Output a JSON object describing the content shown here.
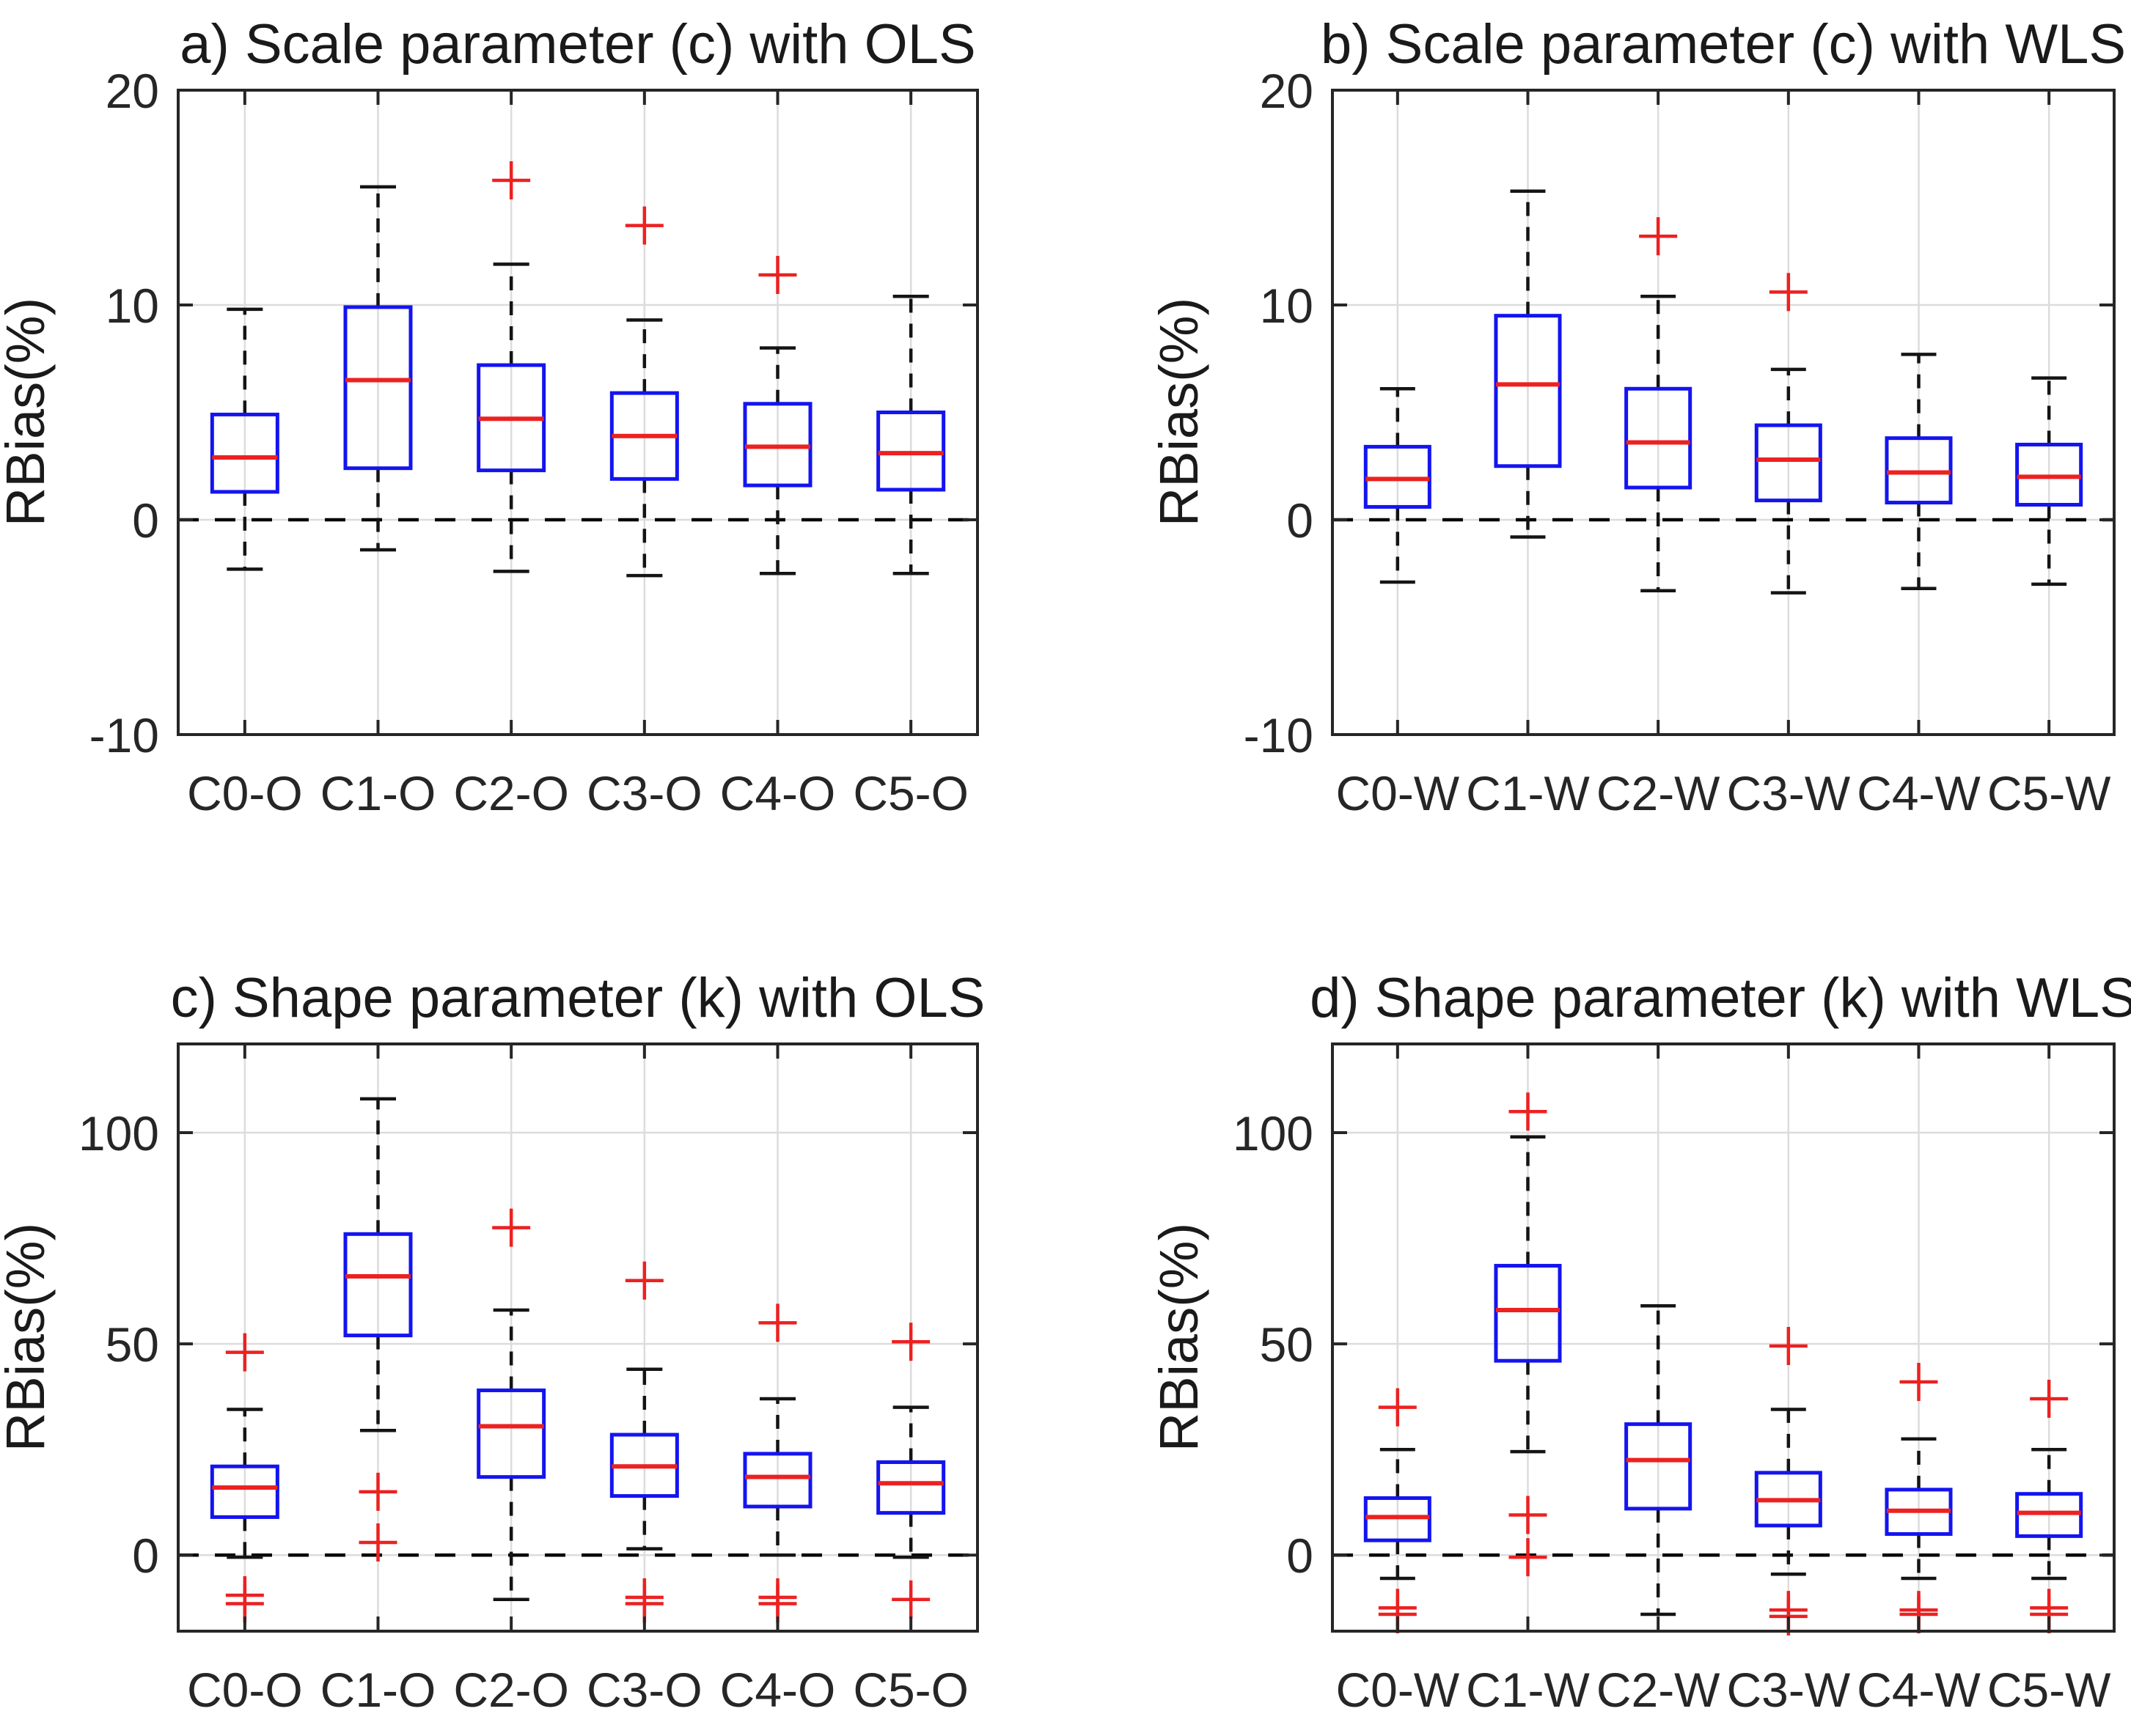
{
  "figure": {
    "background": "#ffffff",
    "colors": {
      "box": "#1414f0",
      "median": "#ec2121",
      "outlier": "#ec2121",
      "whisker": "#141414",
      "cap": "#141414",
      "grid": "#dcdcdc",
      "axis": "#262626",
      "zero_line": "#000000",
      "text": "#262626"
    }
  },
  "chart_data": [
    {
      "id": "a",
      "type": "boxplot",
      "title": "a) Scale parameter (c) with OLS",
      "ylabel": "RBias(%)",
      "ylim": [
        -10,
        20
      ],
      "yticks": [
        -10,
        0,
        10,
        20
      ],
      "grid": true,
      "zero_line": true,
      "categories": [
        "C0-O",
        "C1-O",
        "C2-O",
        "C3-O",
        "C4-O",
        "C5-O"
      ],
      "boxes": [
        {
          "whisker_low": -2.3,
          "q1": 1.3,
          "median": 2.9,
          "q3": 4.9,
          "whisker_high": 9.8,
          "outliers": []
        },
        {
          "whisker_low": -1.4,
          "q1": 2.4,
          "median": 6.5,
          "q3": 9.9,
          "whisker_high": 15.5,
          "outliers": []
        },
        {
          "whisker_low": -2.4,
          "q1": 2.3,
          "median": 4.7,
          "q3": 7.2,
          "whisker_high": 11.9,
          "outliers": [
            15.8
          ]
        },
        {
          "whisker_low": -2.6,
          "q1": 1.9,
          "median": 3.9,
          "q3": 5.9,
          "whisker_high": 9.3,
          "outliers": [
            13.7
          ]
        },
        {
          "whisker_low": -2.5,
          "q1": 1.6,
          "median": 3.4,
          "q3": 5.4,
          "whisker_high": 8.0,
          "outliers": [
            11.4
          ]
        },
        {
          "whisker_low": -2.5,
          "q1": 1.4,
          "median": 3.1,
          "q3": 5.0,
          "whisker_high": 10.4,
          "outliers": []
        }
      ]
    },
    {
      "id": "b",
      "type": "boxplot",
      "title": "b) Scale parameter (c) with WLS",
      "ylabel": "RBias(%)",
      "ylim": [
        -10,
        20
      ],
      "yticks": [
        -10,
        0,
        10,
        20
      ],
      "grid": true,
      "zero_line": true,
      "categories": [
        "C0-W",
        "C1-W",
        "C2-W",
        "C3-W",
        "C4-W",
        "C5-W"
      ],
      "boxes": [
        {
          "whisker_low": -2.9,
          "q1": 0.6,
          "median": 1.9,
          "q3": 3.4,
          "whisker_high": 6.1,
          "outliers": []
        },
        {
          "whisker_low": -0.8,
          "q1": 2.5,
          "median": 6.3,
          "q3": 9.5,
          "whisker_high": 15.3,
          "outliers": []
        },
        {
          "whisker_low": -3.3,
          "q1": 1.5,
          "median": 3.6,
          "q3": 6.1,
          "whisker_high": 10.4,
          "outliers": [
            13.2
          ]
        },
        {
          "whisker_low": -3.4,
          "q1": 0.9,
          "median": 2.8,
          "q3": 4.4,
          "whisker_high": 7.0,
          "outliers": [
            10.6
          ]
        },
        {
          "whisker_low": -3.2,
          "q1": 0.8,
          "median": 2.2,
          "q3": 3.8,
          "whisker_high": 7.7,
          "outliers": []
        },
        {
          "whisker_low": -3.0,
          "q1": 0.7,
          "median": 2.0,
          "q3": 3.5,
          "whisker_high": 6.6,
          "outliers": []
        }
      ]
    },
    {
      "id": "c",
      "type": "boxplot",
      "title": "c) Shape parameter (k) with OLS",
      "ylabel": "RBias(%)",
      "ylim": [
        -18,
        121
      ],
      "yticks": [
        0,
        50,
        100
      ],
      "grid": true,
      "zero_line": true,
      "categories": [
        "C0-O",
        "C1-O",
        "C2-O",
        "C3-O",
        "C4-O",
        "C5-O"
      ],
      "boxes": [
        {
          "whisker_low": -0.5,
          "q1": 9.0,
          "median": 16.0,
          "q3": 21.0,
          "whisker_high": 34.5,
          "outliers": [
            48,
            -9.5,
            -11.5
          ]
        },
        {
          "whisker_low": 29.5,
          "q1": 52.0,
          "median": 66.0,
          "q3": 76.0,
          "whisker_high": 108.0,
          "outliers": [
            15,
            3
          ]
        },
        {
          "whisker_low": -10.5,
          "q1": 18.5,
          "median": 30.5,
          "q3": 39.0,
          "whisker_high": 58.0,
          "outliers": [
            77.5
          ]
        },
        {
          "whisker_low": 1.5,
          "q1": 14.0,
          "median": 21.0,
          "q3": 28.5,
          "whisker_high": 44.0,
          "outliers": [
            65,
            -10,
            -11.5
          ]
        },
        {
          "whisker_low": 0.0,
          "q1": 11.5,
          "median": 18.5,
          "q3": 24.0,
          "whisker_high": 37.0,
          "outliers": [
            55,
            -10,
            -11.5
          ]
        },
        {
          "whisker_low": -0.5,
          "q1": 10.0,
          "median": 17.0,
          "q3": 22.0,
          "whisker_high": 35.0,
          "outliers": [
            50.5,
            -10.5
          ]
        }
      ]
    },
    {
      "id": "d",
      "type": "boxplot",
      "title": "d) Shape parameter (k) with WLS",
      "ylabel": "RBias(%)",
      "ylim": [
        -18,
        121
      ],
      "yticks": [
        0,
        50,
        100
      ],
      "grid": true,
      "zero_line": true,
      "categories": [
        "C0-W",
        "C1-W",
        "C2-W",
        "C3-W",
        "C4-W",
        "C5-W"
      ],
      "boxes": [
        {
          "whisker_low": -5.5,
          "q1": 3.5,
          "median": 9.0,
          "q3": 13.5,
          "whisker_high": 25.0,
          "outliers": [
            35,
            -12.5,
            -14
          ]
        },
        {
          "whisker_low": 24.5,
          "q1": 46.0,
          "median": 58.0,
          "q3": 68.5,
          "whisker_high": 99.0,
          "outliers": [
            105,
            9.5,
            -0.5
          ]
        },
        {
          "whisker_low": -14.0,
          "q1": 11.0,
          "median": 22.5,
          "q3": 31.0,
          "whisker_high": 59.0,
          "outliers": []
        },
        {
          "whisker_low": -4.5,
          "q1": 7.0,
          "median": 13.0,
          "q3": 19.5,
          "whisker_high": 34.5,
          "outliers": [
            49.5,
            -13,
            -14.5
          ]
        },
        {
          "whisker_low": -5.5,
          "q1": 5.0,
          "median": 10.5,
          "q3": 15.5,
          "whisker_high": 27.5,
          "outliers": [
            41,
            -13,
            -14
          ]
        },
        {
          "whisker_low": -5.5,
          "q1": 4.5,
          "median": 10.0,
          "q3": 14.5,
          "whisker_high": 25.0,
          "outliers": [
            37,
            -12.5,
            -14
          ]
        }
      ]
    }
  ]
}
